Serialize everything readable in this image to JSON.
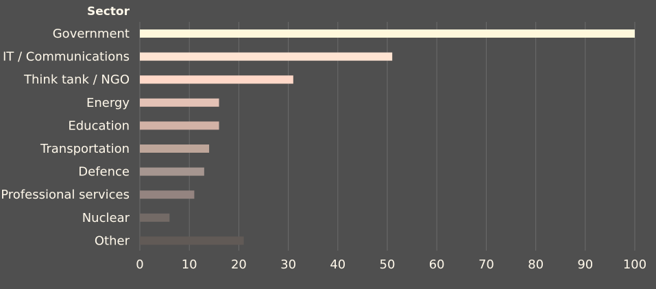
{
  "chart_data": {
    "type": "bar",
    "orientation": "horizontal",
    "ylabel": "Sector",
    "xlabel": "",
    "categories": [
      "Government",
      "IT / Communications",
      "Think tank / NGO",
      "Energy",
      "Education",
      "Transportation",
      "Defence",
      "Professional services",
      "Nuclear",
      "Other"
    ],
    "values": [
      100,
      51,
      31,
      16,
      16,
      14,
      13,
      11,
      6,
      21
    ],
    "bar_colors": [
      "#fff8dc",
      "#ffe4d2",
      "#ffd8c8",
      "#e4c2b6",
      "#d2b2a6",
      "#bea69a",
      "#a69690",
      "#948480",
      "#736a66",
      "#615a56"
    ],
    "xlim": [
      0,
      100
    ],
    "xticks": [
      0,
      10,
      20,
      30,
      40,
      50,
      60,
      70,
      80,
      90,
      100
    ],
    "grid": true,
    "legend": "none",
    "colors": {
      "background": "#4f4f4f",
      "text": "#fff8ea",
      "grid": "#6c6c6c"
    }
  }
}
